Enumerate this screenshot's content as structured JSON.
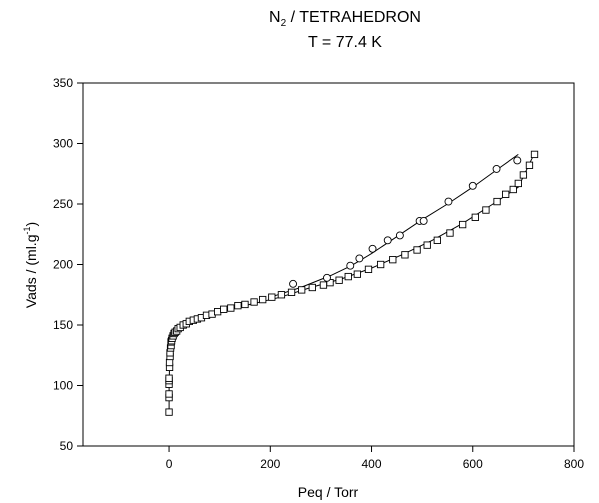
{
  "chart_data": {
    "type": "scatter",
    "title_main": "N",
    "title_sub": "2",
    "title_rest": " / TETRAHEDRON",
    "subtitle": "T = 77.4 K",
    "xlabel": "Peq / Torr",
    "ylabel_main": "Vads / (ml.g",
    "ylabel_sup": "-1",
    "ylabel_end": ")",
    "xlim": [
      -170,
      800
    ],
    "ylim": [
      50,
      350
    ],
    "x_ticks": [
      0,
      200,
      400,
      600,
      800
    ],
    "y_ticks": [
      50,
      100,
      150,
      200,
      250,
      300,
      350
    ],
    "grid": false,
    "series": [
      {
        "marker": "square",
        "points": [
          [
            0,
            78
          ],
          [
            0,
            90
          ],
          [
            0,
            93
          ],
          [
            0,
            101
          ],
          [
            0,
            104
          ],
          [
            0,
            106
          ],
          [
            1,
            115
          ],
          [
            1,
            119
          ],
          [
            2,
            124
          ],
          [
            2,
            127
          ],
          [
            3,
            131
          ],
          [
            4,
            133
          ],
          [
            4,
            136
          ],
          [
            5,
            137
          ],
          [
            6,
            139
          ],
          [
            8,
            141
          ],
          [
            10,
            143
          ],
          [
            12,
            144
          ],
          [
            15,
            145
          ],
          [
            18,
            147
          ],
          [
            22,
            148
          ],
          [
            28,
            150
          ],
          [
            34,
            151
          ],
          [
            40,
            153
          ],
          [
            48,
            154
          ],
          [
            56,
            155
          ],
          [
            64,
            156
          ],
          [
            74,
            158
          ],
          [
            85,
            159
          ],
          [
            96,
            161
          ],
          [
            108,
            163
          ],
          [
            122,
            164
          ],
          [
            136,
            166
          ],
          [
            150,
            167
          ],
          [
            168,
            169
          ],
          [
            185,
            171
          ],
          [
            203,
            173
          ],
          [
            222,
            175
          ],
          [
            242,
            177
          ],
          [
            262,
            179
          ],
          [
            283,
            181
          ],
          [
            305,
            183
          ],
          [
            318,
            185
          ],
          [
            336,
            187
          ],
          [
            354,
            190
          ],
          [
            372,
            192
          ],
          [
            394,
            196
          ],
          [
            418,
            200
          ],
          [
            442,
            204
          ],
          [
            466,
            208
          ],
          [
            490,
            212
          ],
          [
            510,
            216
          ],
          [
            530,
            220
          ],
          [
            555,
            226
          ],
          [
            580,
            233
          ],
          [
            605,
            239
          ],
          [
            626,
            245
          ],
          [
            648,
            252
          ],
          [
            665,
            258
          ],
          [
            680,
            262
          ],
          [
            690,
            267
          ],
          [
            700,
            274
          ],
          [
            712,
            282
          ],
          [
            722,
            291
          ]
        ],
        "fit_line": [
          [
            0,
            78
          ],
          [
            0,
            100
          ],
          [
            1,
            118
          ],
          [
            3,
            130
          ],
          [
            8,
            139
          ],
          [
            20,
            146
          ],
          [
            40,
            152
          ],
          [
            70,
            157
          ],
          [
            110,
            162
          ],
          [
            160,
            167
          ],
          [
            220,
            173
          ],
          [
            280,
            181
          ],
          [
            340,
            188
          ],
          [
            400,
            197
          ],
          [
            460,
            208
          ],
          [
            520,
            220
          ],
          [
            580,
            234
          ],
          [
            640,
            250
          ],
          [
            690,
            264
          ],
          [
            722,
            292
          ]
        ]
      },
      {
        "marker": "circle",
        "points": [
          [
            245,
            184
          ],
          [
            312,
            189
          ],
          [
            358,
            199
          ],
          [
            376,
            205
          ],
          [
            402,
            213
          ],
          [
            432,
            220
          ],
          [
            456,
            224
          ],
          [
            495,
            236
          ],
          [
            503,
            236
          ],
          [
            552,
            252
          ],
          [
            600,
            265
          ],
          [
            647,
            279
          ],
          [
            688,
            286
          ]
        ],
        "fit_line": [
          [
            200,
            173
          ],
          [
            260,
            181
          ],
          [
            320,
            191
          ],
          [
            360,
            199
          ],
          [
            400,
            209
          ],
          [
            450,
            223
          ],
          [
            500,
            237
          ],
          [
            550,
            250
          ],
          [
            600,
            264
          ],
          [
            650,
            279
          ],
          [
            690,
            291
          ]
        ]
      }
    ]
  }
}
